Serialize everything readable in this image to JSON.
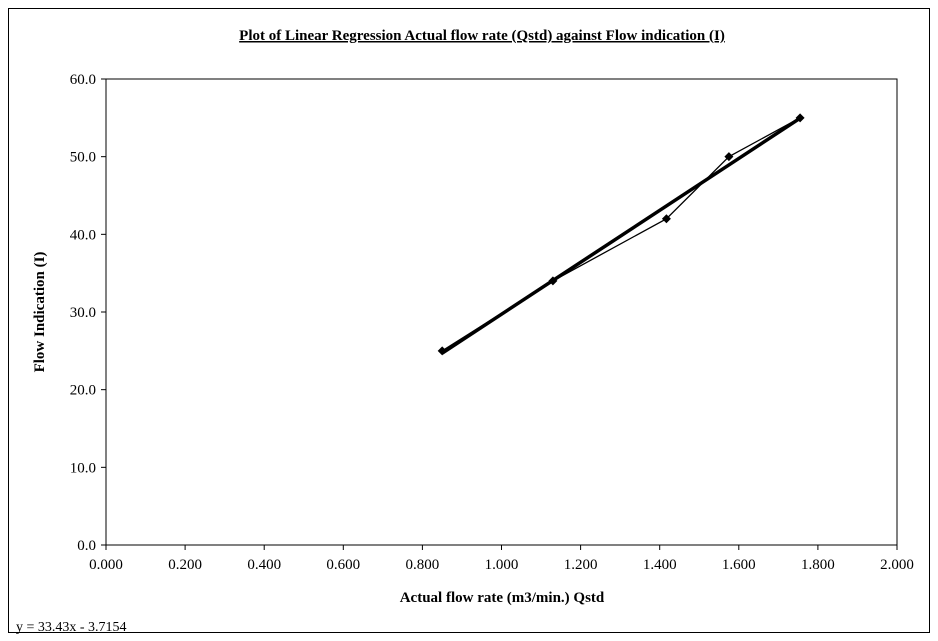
{
  "chart_data": {
    "type": "scatter",
    "title": "Plot of Linear Regression Actual flow rate (Qstd) against Flow indication (I)",
    "xlabel": "Actual flow rate (m3/min.) Qstd",
    "ylabel": "Flow Indication (I)",
    "xlim": [
      0,
      2
    ],
    "ylim": [
      0,
      60
    ],
    "xticks": [
      "0.000",
      "0.200",
      "0.400",
      "0.600",
      "0.800",
      "1.000",
      "1.200",
      "1.400",
      "1.600",
      "1.800",
      "2.000"
    ],
    "yticks": [
      "0.0",
      "10.0",
      "20.0",
      "30.0",
      "40.0",
      "50.0",
      "60.0"
    ],
    "series": [
      {
        "x": [
          0.85,
          1.13,
          1.417,
          1.575,
          1.755
        ],
        "y": [
          25,
          34,
          42,
          50,
          55
        ],
        "marker": "diamond",
        "line": "connected"
      }
    ],
    "trendline": {
      "type": "linear",
      "slope": 33.43,
      "intercept": -3.7154,
      "x_range": [
        0.85,
        1.755
      ]
    },
    "equation_label": "y = 33.43x - 3.7154",
    "grid": false,
    "legend": "none",
    "colors": {
      "series": "#000000",
      "trendline": "#000000",
      "axes": "#000000"
    }
  }
}
